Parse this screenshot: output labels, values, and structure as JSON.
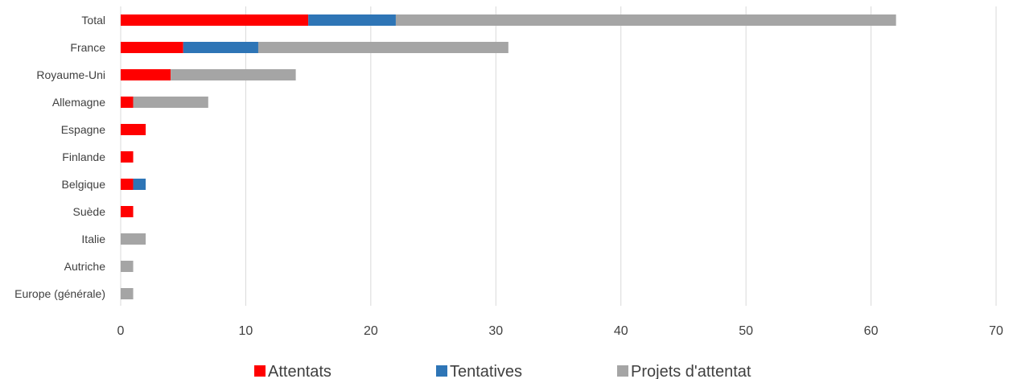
{
  "chart_data": {
    "type": "bar",
    "orientation": "horizontal",
    "stacked": true,
    "categories": [
      "Total",
      "France",
      "Royaume-Uni",
      "Allemagne",
      "Espagne",
      "Finlande",
      "Belgique",
      "Suède",
      "Italie",
      "Autriche",
      "Europe (générale)"
    ],
    "series": [
      {
        "name": "Attentats",
        "color": "#ff0000",
        "values": [
          15,
          5,
          4,
          1,
          2,
          1,
          1,
          1,
          0,
          0,
          0
        ]
      },
      {
        "name": "Tentatives",
        "color": "#2e75b6",
        "values": [
          7,
          6,
          0,
          0,
          0,
          0,
          1,
          0,
          0,
          0,
          0
        ]
      },
      {
        "name": "Projets d'attentat",
        "color": "#a5a5a5",
        "values": [
          40,
          20,
          10,
          6,
          0,
          0,
          0,
          0,
          2,
          1,
          1
        ]
      }
    ],
    "xlim": [
      0,
      70
    ],
    "xticks": [
      "0",
      "10",
      "20",
      "30",
      "40",
      "50",
      "60",
      "70"
    ],
    "grid": true,
    "legend_position": "bottom",
    "title": "",
    "xlabel": "",
    "ylabel": ""
  }
}
